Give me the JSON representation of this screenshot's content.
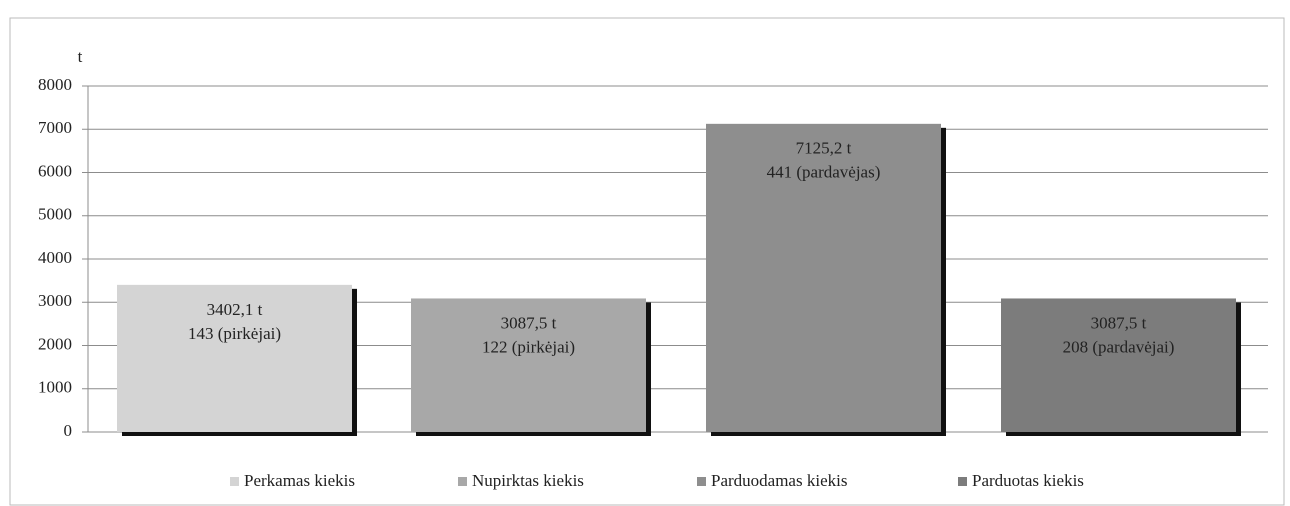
{
  "chart_data": {
    "type": "bar",
    "y_label": "t",
    "categories": [
      "Perkamas kiekis",
      "Nupirktas kiekis",
      "Parduodamas kiekis",
      "Parduotas kiekis"
    ],
    "values": [
      3402.1,
      3087.5,
      7125.2,
      3087.5
    ],
    "value_labels": [
      "3402,1 t",
      "3087,5 t",
      "7125,2 t",
      "3087,5 t"
    ],
    "annotations": [
      "143 (pirkėjai)",
      "122 (pirkėjai)",
      "441 (pardavėjas)",
      "208 (pardavėjai)"
    ],
    "colors": [
      "#d4d4d4",
      "#a8a8a8",
      "#8e8e8e",
      "#7c7c7c"
    ],
    "ylim": [
      0,
      8000
    ],
    "yticks": [
      0,
      1000,
      2000,
      3000,
      4000,
      5000,
      6000,
      7000,
      8000
    ],
    "grid": true,
    "legend": "bottom"
  }
}
